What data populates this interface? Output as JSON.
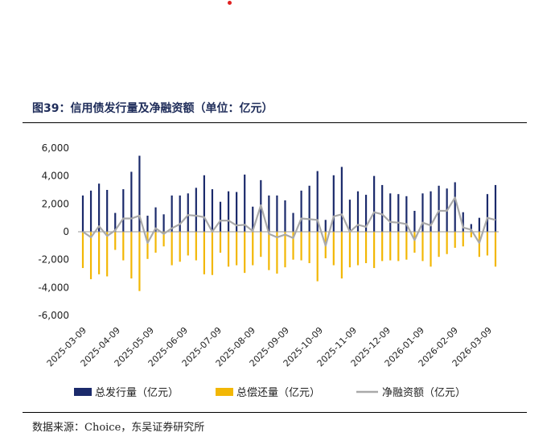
{
  "header": {
    "title": "图39：信用债发行量及净融资额（单位：亿元）"
  },
  "footer": {
    "source": "数据来源：Choice，东吴证券研究所"
  },
  "colors": {
    "issuance": "#1b2a6b",
    "repayment": "#f2b705",
    "net": "#a9a9a9",
    "accent_dot": "#e02020"
  },
  "chart_data": {
    "type": "bar",
    "ylim": [
      -6000,
      6000
    ],
    "y_ticks": [
      "6,000",
      "4,000",
      "2,000",
      "0",
      "-2,000",
      "-4,000",
      "-6,000"
    ],
    "y_tick_values": [
      6000,
      4000,
      2000,
      0,
      -2000,
      -4000,
      -6000
    ],
    "x_tick_labels": [
      "2025-03-09",
      "2025-04-09",
      "2025-05-09",
      "2025-06-09",
      "2025-07-09",
      "2025-08-09",
      "2025-09-09",
      "2025-10-09",
      "2025-11-09",
      "2025-12-09",
      "2026-01-09",
      "2026-02-09",
      "2026-03-09"
    ],
    "legend": [
      "总发行量（亿元）",
      "总偿还量（亿元）",
      "净融资额（亿元）"
    ],
    "legend_position": "bottom",
    "series": [
      {
        "name": "总发行量（亿元）",
        "type": "bar",
        "values": [
          2600,
          2950,
          3450,
          3000,
          1350,
          3050,
          4300,
          5450,
          1150,
          1750,
          1250,
          2600,
          2600,
          2750,
          3150,
          4050,
          3050,
          2150,
          2900,
          2850,
          4100,
          1800,
          3700,
          2600,
          2600,
          2250,
          1350,
          2950,
          3300,
          4350,
          850,
          4050,
          4650,
          2300,
          2900,
          2650,
          4000,
          3350,
          2750,
          2700,
          2550,
          1500,
          2750,
          2900,
          3300,
          3100,
          3550,
          1400,
          550,
          1000,
          2700,
          3350
        ]
      },
      {
        "name": "总偿还量（亿元）",
        "type": "bar",
        "values": [
          -2600,
          -3400,
          -3050,
          -3200,
          -1300,
          -2050,
          -3350,
          -4250,
          -1950,
          -1500,
          -1050,
          -2400,
          -2150,
          -1700,
          -2050,
          -3050,
          -3100,
          -1500,
          -2500,
          -2400,
          -2950,
          -2400,
          -1800,
          -2750,
          -3000,
          -2550,
          -2000,
          -2050,
          -2250,
          -3550,
          -1900,
          -2400,
          -3350,
          -2550,
          -2400,
          -2250,
          -2600,
          -2100,
          -2050,
          -2100,
          -2000,
          -1500,
          -2100,
          -2500,
          -1800,
          -1600,
          -1150,
          -1050,
          -400,
          -1800,
          -1700,
          -2500
        ]
      },
      {
        "name": "净融资额（亿元）",
        "type": "line",
        "values": [
          0,
          -400,
          400,
          -300,
          100,
          950,
          950,
          1150,
          -800,
          250,
          -150,
          250,
          550,
          1200,
          1150,
          1050,
          0,
          800,
          800,
          450,
          500,
          50,
          1900,
          -150,
          -400,
          -200,
          -450,
          950,
          900,
          850,
          -1000,
          1100,
          1250,
          0,
          500,
          350,
          1400,
          1250,
          700,
          650,
          550,
          -600,
          650,
          450,
          1500,
          1500,
          2450,
          300,
          150,
          -800,
          1000,
          850
        ]
      }
    ]
  }
}
